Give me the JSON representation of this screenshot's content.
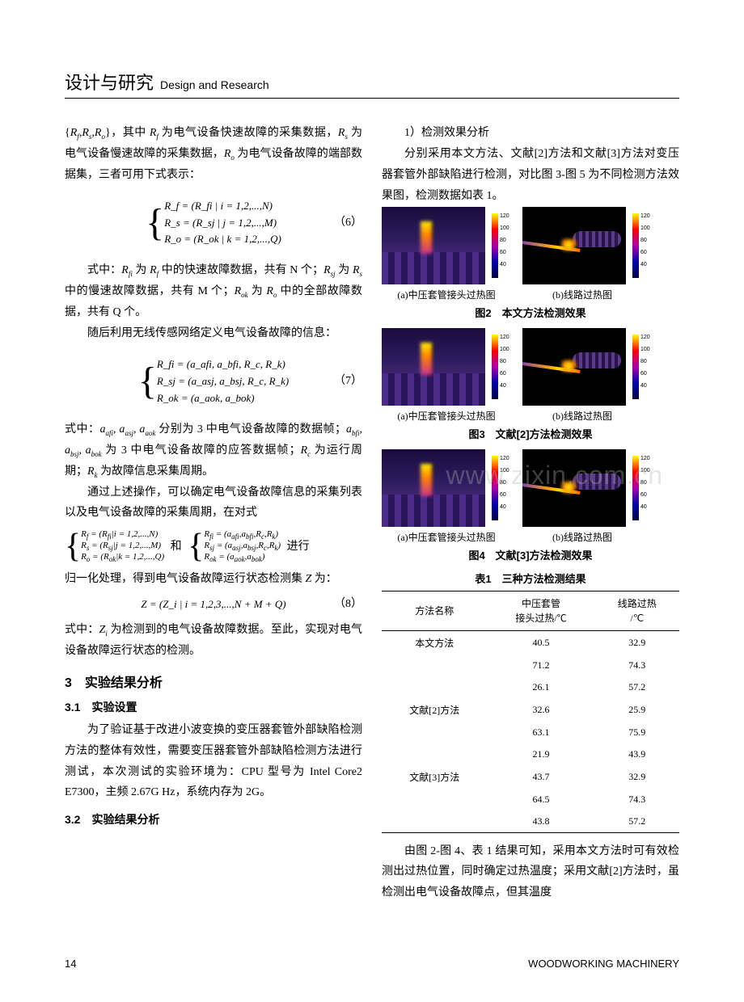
{
  "header": {
    "cn": "设计与研究",
    "en": "Design and Research"
  },
  "left": {
    "p1": "{R_f,R_s,R_o}，其中 R_f 为电气设备快速故障的采集数据，R_s 为电气设备慢速故障的采集数据，R_o 为电气设备故障的端部数据集，三者可用下式表示：",
    "eq6_l1": "R_f = (R_fi | i = 1,2,...,N)",
    "eq6_l2": "R_s = (R_sj | j = 1,2,...,M)",
    "eq6_l3": "R_o = (R_ok | k = 1,2,...,Q)",
    "eq6_num": "（6）",
    "p2": "式中：R_fi 为 R_f 中的快速故障数据，共有 N 个；R_sj 为 R_s 中的慢速故障数据，共有 M 个；R_ok 为 R_o 中的全部故障数据，共有 Q 个。",
    "p3": "随后利用无线传感网络定义电气设备故障的信息：",
    "eq7_l1": "R_fi = (a_afi, a_bfi, R_c, R_k)",
    "eq7_l2": "R_sj = (a_asj, a_bsj, R_c, R_k)",
    "eq7_l3": "R_ok = (a_aok, a_bok)",
    "eq7_num": "（7）",
    "p4": "式中：a_afi, a_asj, a_aok 分别为 3 中电气设备故障的数据帧；a_bfi, a_bsj, a_bok 为 3 中电气设备故障的应答数据帧；R_c 为运行周期；R_k 为故障信息采集周期。",
    "p5": "通过上述操作，可以确定电气设备故障信息的采集列表以及电气设备故障的采集周期，在对式",
    "p5b": "进行归一化处理，得到电气设备故障运行状态检测集 Z 为：",
    "eq8": "Z = (Z_i | i = 1,2,3,...,N + M + Q)",
    "eq8_num": "（8）",
    "p6": "式中：Z_i 为检测到的电气设备故障数据。至此，实现对电气设备故障运行状态的检测。",
    "h3": "3　实验结果分析",
    "h31": "3.1　实验设置",
    "p7": "为了验证基于改进小波变换的变压器套管外部缺陷检测方法的整体有效性，需要变压器套管外部缺陷检测方法进行测试，本次测试的实验环境为：CPU 型号为 Intel Core2 E7300，主频 2.67G Hz，系统内存为 2G。",
    "h32": "3.2　实验结果分析"
  },
  "right": {
    "p1_title": "1）检测效果分析",
    "p1": "分别采用本文方法、文献[2]方法和文献[3]方法对变压器套管外部缺陷进行检测，对比图 3-图 5 为不同检测方法效果图，检测数据如表 1。",
    "fig2_a": "(a)中压套管接头过热图",
    "fig2_b": "(b)线路过热图",
    "fig2_title": "图2　本文方法检测效果",
    "fig3_a": "(a)中压套管接头过热图",
    "fig3_b": "(b)线路过热图",
    "fig3_title": "图3　文献[2]方法检测效果",
    "fig4_a": "(a)中压套管接头过热图",
    "fig4_b": "(b)线路过热图",
    "fig4_title": "图4　文献[3]方法检测效果",
    "table1_title": "表1　三种方法检测结果",
    "table1": {
      "headers": [
        "方法名称",
        "中压套管\n接头过热/℃",
        "线路过热\n/℃"
      ],
      "rows": [
        [
          "本文方法",
          "40.5",
          "32.9"
        ],
        [
          "",
          "71.2",
          "74.3"
        ],
        [
          "",
          "26.1",
          "57.2"
        ],
        [
          "文献[2]方法",
          "32.6",
          "25.9"
        ],
        [
          "",
          "63.1",
          "75.9"
        ],
        [
          "",
          "21.9",
          "43.9"
        ],
        [
          "文献[3]方法",
          "43.7",
          "32.9"
        ],
        [
          "",
          "64.5",
          "74.3"
        ],
        [
          "",
          "43.8",
          "57.2"
        ]
      ]
    },
    "p_end": "由图 2-图 4、表 1 结果可知，采用本文方法时可有效检测出过热位置，同时确定过热温度；采用文献[2]方法时，虽检测出电气设备故障点，但其温度",
    "colorbar_values": [
      "120",
      "100",
      "80",
      "60",
      "40"
    ]
  },
  "footer": {
    "page": "14",
    "journal": "WOODWORKING MACHINERY"
  },
  "watermark": "www.zixin.com.cn"
}
